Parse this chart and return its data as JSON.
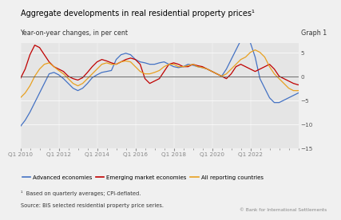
{
  "title": "Aggregate developments in real residential property prices¹",
  "subtitle": "Year-on-year changes, in per cent",
  "graph_label": "Graph 1",
  "footnote": "¹  Based on quarterly averages; CPI-deflated.",
  "source": "Source: BIS selected residential property price series.",
  "copyright": "© Bank for International Settlements",
  "xlim_start": 0,
  "xlim_end": 59,
  "ylim": [
    -15,
    7
  ],
  "yticks": [
    -15,
    -10,
    -5,
    0,
    5
  ],
  "xtick_labels": [
    "Q1 2010",
    "Q1 2012",
    "Q1 2014",
    "Q1 2016",
    "Q1 2018",
    "Q1 2020",
    "Q1 2022"
  ],
  "xtick_positions": [
    0,
    8,
    16,
    24,
    32,
    40,
    48
  ],
  "background_color": "#e5e5e5",
  "figure_bg": "#f0f0f0",
  "color_advanced": "#4472c4",
  "color_emerging": "#c00000",
  "color_all": "#e8a020",
  "legend_labels": [
    "Advanced economies",
    "Emerging market economies",
    "All reporting countries"
  ],
  "advanced": [
    -10.5,
    -9.2,
    -7.5,
    -5.5,
    -3.5,
    -1.5,
    0.5,
    0.8,
    0.3,
    -0.5,
    -1.5,
    -2.5,
    -3.0,
    -2.5,
    -1.5,
    -0.3,
    0.3,
    0.8,
    1.0,
    1.2,
    3.5,
    4.5,
    4.8,
    4.5,
    3.5,
    3.0,
    2.8,
    2.5,
    2.5,
    2.8,
    3.0,
    2.5,
    2.0,
    1.8,
    2.0,
    2.5,
    2.3,
    2.0,
    1.8,
    1.5,
    1.0,
    0.5,
    0.0,
    1.5,
    3.5,
    5.5,
    7.5,
    8.0,
    7.0,
    4.0,
    -0.5,
    -2.5,
    -4.5,
    -5.5,
    -5.5,
    -5.0,
    -4.5,
    -4.0,
    -3.5,
    -3.2
  ],
  "emerging": [
    -0.5,
    1.5,
    4.5,
    6.5,
    6.0,
    4.5,
    3.0,
    2.0,
    1.5,
    1.0,
    0.0,
    -0.5,
    -0.8,
    -0.3,
    0.8,
    2.0,
    3.0,
    3.5,
    3.2,
    2.8,
    2.5,
    3.0,
    3.5,
    3.8,
    3.5,
    2.5,
    -0.5,
    -1.5,
    -1.0,
    -0.5,
    1.0,
    2.5,
    2.8,
    2.5,
    2.0,
    2.0,
    2.5,
    2.2,
    2.0,
    1.5,
    1.0,
    0.5,
    0.0,
    -0.5,
    0.5,
    2.0,
    2.5,
    2.0,
    1.5,
    1.0,
    1.5,
    2.0,
    2.5,
    1.5,
    0.0,
    -0.5,
    -1.0,
    -1.5,
    -1.8,
    -1.5
  ],
  "all_reporting": [
    -4.5,
    -3.5,
    -2.0,
    0.0,
    1.5,
    2.5,
    2.8,
    2.0,
    1.2,
    0.5,
    -0.5,
    -1.5,
    -2.0,
    -1.5,
    -0.5,
    0.5,
    1.5,
    2.5,
    2.8,
    2.5,
    2.5,
    3.0,
    3.2,
    3.0,
    2.0,
    1.0,
    0.5,
    0.5,
    0.8,
    1.2,
    2.0,
    2.5,
    2.5,
    2.0,
    2.0,
    2.2,
    2.5,
    2.0,
    1.8,
    1.5,
    1.0,
    0.5,
    0.0,
    0.5,
    1.5,
    2.5,
    3.5,
    4.0,
    5.0,
    5.5,
    5.0,
    4.0,
    2.0,
    0.5,
    -0.5,
    -1.5,
    -2.5,
    -3.0,
    -3.0,
    -2.8
  ]
}
